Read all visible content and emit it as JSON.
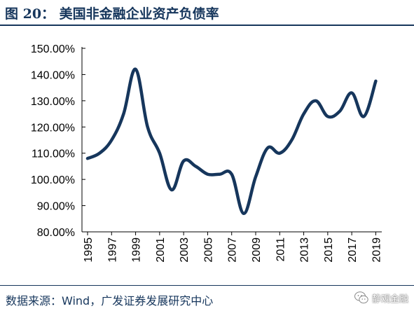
{
  "header": {
    "title": "图 20： 美国非金融企业资产负债率"
  },
  "footer": {
    "source": "数据来源：Wind，广发证券发展研究中心"
  },
  "watermark": {
    "text": "静观金融",
    "icon": "wechat-logo-icon"
  },
  "colors": {
    "title": "#16365c",
    "line": "#16365c",
    "axis": "#000000"
  },
  "chart_data": {
    "type": "line",
    "title": "",
    "xlabel": "",
    "ylabel": "",
    "ylim": [
      80,
      150
    ],
    "yticks": [
      "80.00%",
      "90.00%",
      "100.00%",
      "110.00%",
      "120.00%",
      "130.00%",
      "140.00%",
      "150.00%"
    ],
    "xticks": [
      "1995",
      "1997",
      "1999",
      "2001",
      "2003",
      "2005",
      "2007",
      "2009",
      "2011",
      "2013",
      "2015",
      "2017",
      "2019"
    ],
    "grid": false,
    "legend": "none",
    "series": [
      {
        "x": [
          1995,
          1996,
          1997,
          1998,
          1999,
          2000,
          2001,
          2002,
          2003,
          2004,
          2005,
          2006,
          2007,
          2008,
          2009,
          2010,
          2011,
          2012,
          2013,
          2014,
          2015,
          2016,
          2017,
          2018,
          2019
        ],
        "values": [
          108,
          110,
          115,
          125,
          142,
          120,
          110,
          96,
          107,
          105,
          102,
          102,
          102,
          87,
          101,
          112,
          110,
          115,
          125,
          130,
          124,
          126,
          133,
          124,
          137.5
        ]
      }
    ]
  }
}
